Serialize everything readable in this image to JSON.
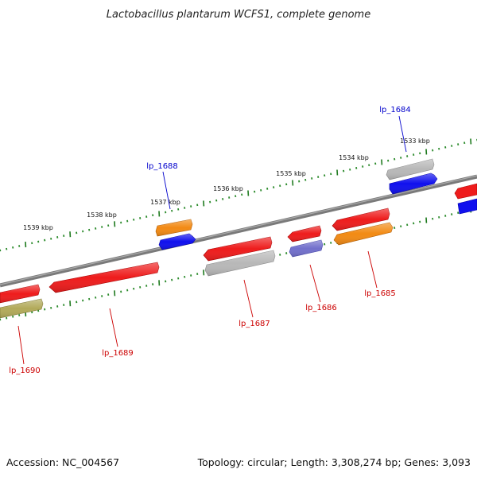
{
  "title": "Lactobacillus plantarum WCFS1, complete genome",
  "footer": {
    "accession": "Accession: NC_004567",
    "summary": "Topology: circular; Length: 3,308,274 bp; Genes: 3,093"
  },
  "colors": {
    "backbone": "#7a7a7a",
    "tick_major": "#1e7a1e",
    "tick_minor": "#2a8a2a",
    "label_plus": "#0000cc",
    "label_minus": "#cc0000",
    "gene_red": "#ee1c1c",
    "gene_orange": "#f28a14",
    "gene_blue": "#1010ee",
    "gene_gray": "#b8b8b8",
    "gene_olive": "#b2aa5a",
    "gene_slate": "#7270cc"
  },
  "kbp_ticks": [
    {
      "label": "1533 kbp"
    },
    {
      "label": "1534 kbp"
    },
    {
      "label": "1535 kbp"
    },
    {
      "label": "1536 kbp"
    },
    {
      "label": "1537 kbp"
    },
    {
      "label": "1538 kbp"
    },
    {
      "label": "1539 kbp"
    }
  ],
  "gene_labels": [
    {
      "text": "lp_1684",
      "strand": "plus"
    },
    {
      "text": "lp_1688",
      "strand": "plus"
    },
    {
      "text": "lp_1685",
      "strand": "minus"
    },
    {
      "text": "lp_1686",
      "strand": "minus"
    },
    {
      "text": "lp_1687",
      "strand": "minus"
    },
    {
      "text": "lp_1689",
      "strand": "minus"
    },
    {
      "text": "lp_1690",
      "strand": "minus"
    }
  ]
}
